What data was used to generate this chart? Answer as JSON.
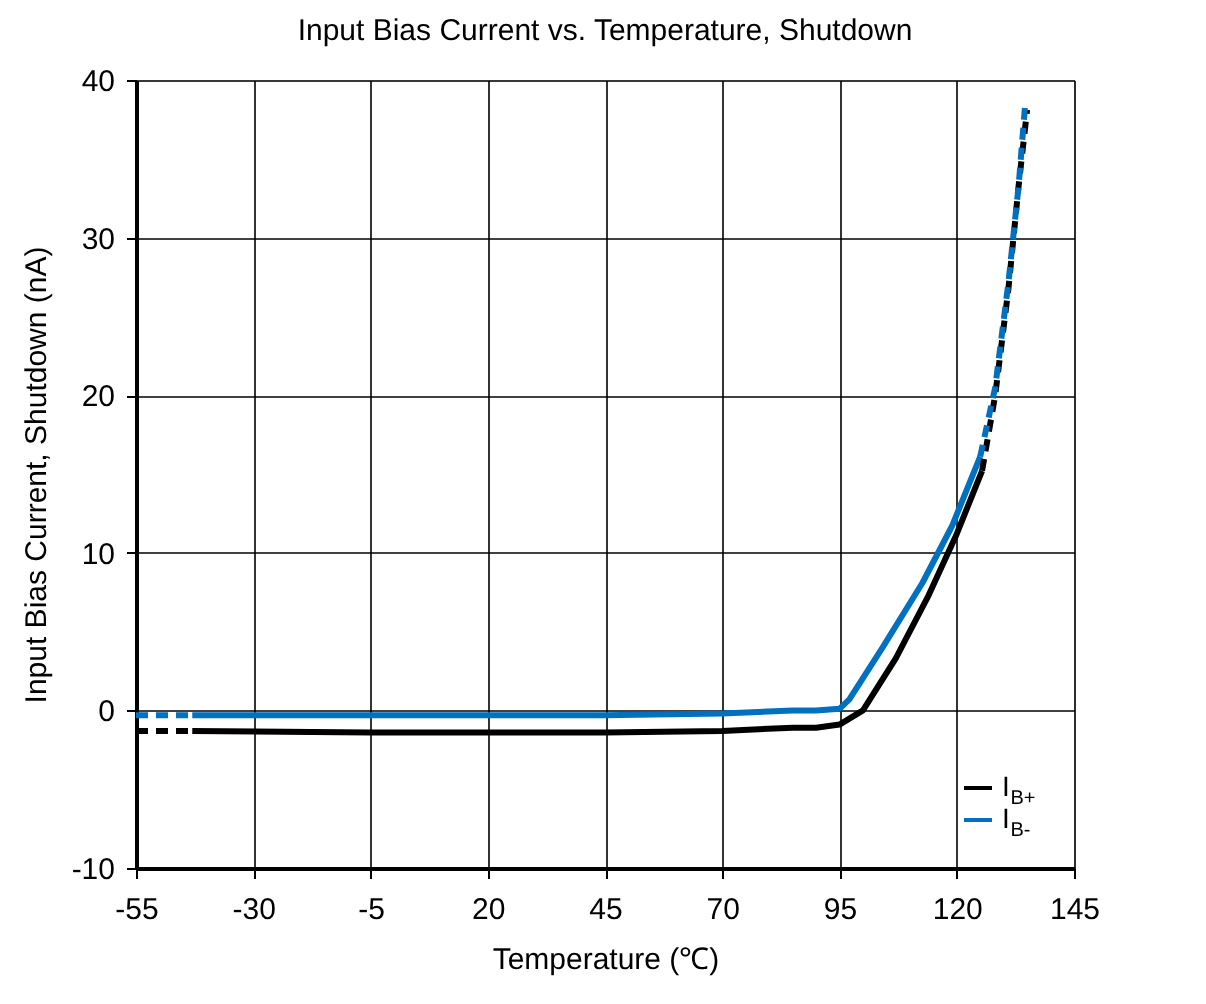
{
  "chart_data": {
    "type": "line",
    "title": "Input Bias Current vs. Temperature, Shutdown",
    "xlabel": "Temperature (℃)",
    "ylabel": "Input Bias Current, Shutdown (nA)",
    "xlim": [
      -55,
      145
    ],
    "xticks": [
      -55,
      -30,
      -5,
      20,
      45,
      70,
      95,
      120,
      145
    ],
    "ylim": [
      -10,
      40
    ],
    "yticks": [
      -10,
      0,
      10,
      20,
      30,
      40
    ],
    "grid": true,
    "legend": "bottom right",
    "marker": "none",
    "series": [
      {
        "name": "I$_{B+}$",
        "color": "#000000",
        "line_style": "solid",
        "x": [
          -43,
          -5,
          45,
          70,
          85,
          90,
          95,
          100,
          107,
          114,
          120,
          125.4
        ],
        "values": [
          -1.3,
          -1.4,
          -1.4,
          -1.3,
          -1.1,
          -1.1,
          -0.9,
          0,
          3.3,
          7.3,
          11.2,
          15.2
        ]
      },
      {
        "name": "I$_{B-}$",
        "color": "#0070c0",
        "line_style": "solid",
        "x": [
          -43,
          45,
          70,
          85,
          90,
          95,
          97.1,
          104.2,
          112.7,
          119,
          125
        ],
        "values": [
          -0.3,
          -0.3,
          -0.2,
          0,
          0,
          0.1,
          0.7,
          4.0,
          8.1,
          11.7,
          16.1
        ]
      },
      {
        "color": "#000000",
        "line_style": "dashed",
        "x": [
          -55,
          -43
        ],
        "values": [
          -1.3,
          -1.3
        ]
      },
      {
        "color": "#000000",
        "line_style": "dashed",
        "x": [
          125.4,
          128.2,
          131,
          133.2,
          135
        ],
        "values": [
          15.2,
          20,
          26.7,
          33.3,
          38.1
        ]
      },
      {
        "color": "#0070c0",
        "line_style": "dashed",
        "x": [
          -55,
          -43
        ],
        "values": [
          -0.3,
          -0.3
        ]
      },
      {
        "color": "#0070c0",
        "line_style": "dashed",
        "x": [
          125,
          128.2,
          131,
          133.2,
          134.6
        ],
        "values": [
          16.1,
          20.5,
          27.1,
          33.3,
          38.5
        ]
      }
    ]
  }
}
